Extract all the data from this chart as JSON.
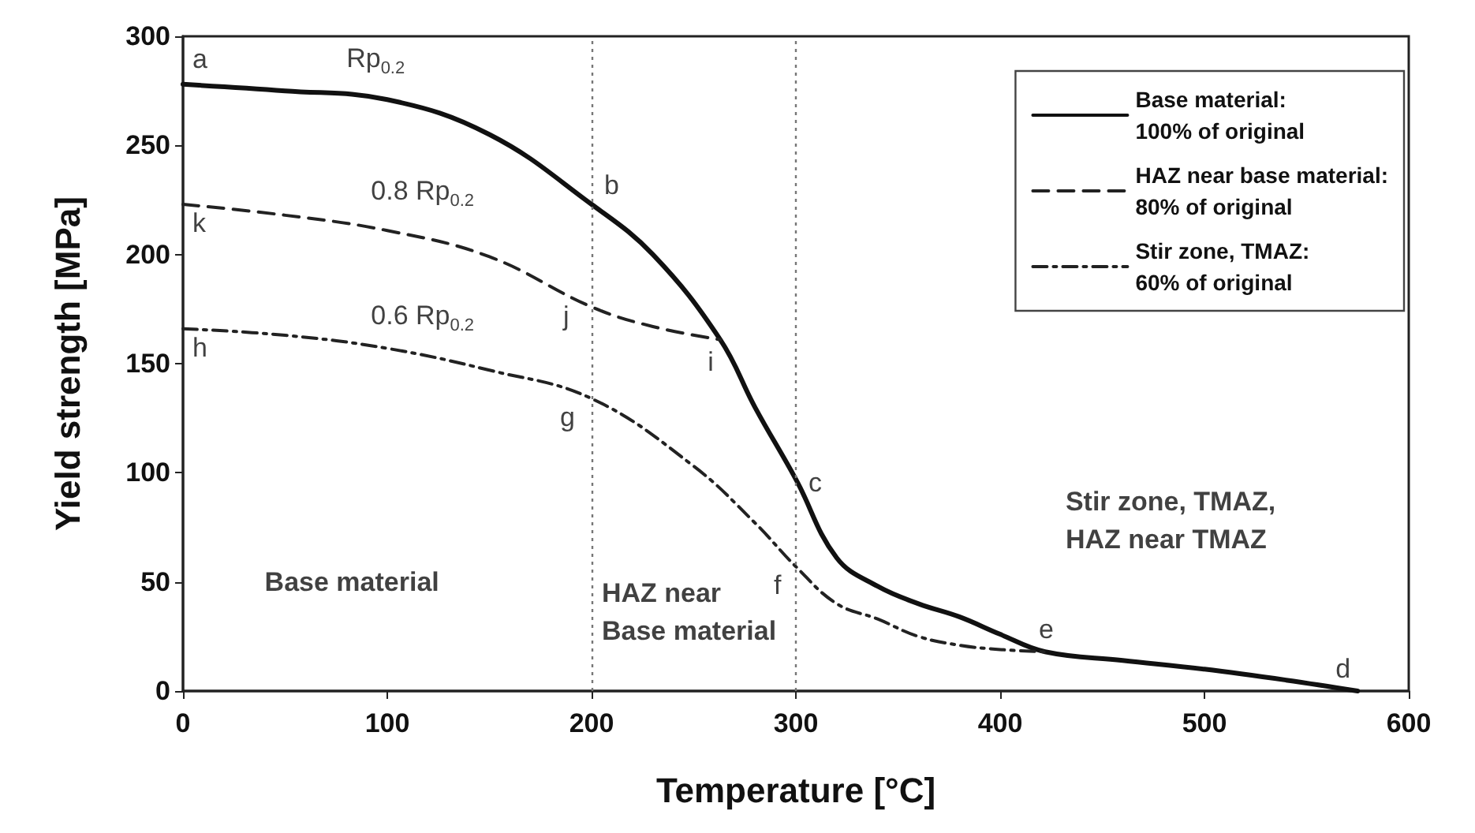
{
  "chart_data": {
    "type": "line",
    "xlabel": "Temperature [°C]",
    "ylabel": "Yield strength [MPa]",
    "xlim": [
      0,
      600
    ],
    "xticks": [
      0,
      100,
      200,
      300,
      400,
      500,
      600
    ],
    "ylim": [
      0,
      300
    ],
    "yticks": [
      0,
      50,
      100,
      150,
      200,
      250,
      300
    ],
    "legend": "top right",
    "marker": "none",
    "series": [
      {
        "name": "Base material:\n100% of original",
        "color": "#111111",
        "line_style": "solid",
        "x": [
          0,
          50,
          100,
          150,
          200,
          230,
          263,
          280,
          300,
          320,
          340,
          360,
          380,
          400,
          422,
          460,
          500,
          540,
          575
        ],
        "values": [
          278,
          275,
          271,
          255,
          223,
          200,
          161,
          130,
          97,
          61,
          48,
          40,
          34,
          26,
          18,
          14,
          10,
          5,
          0
        ]
      },
      {
        "name": "HAZ near base material:\n80% of original",
        "color": "#222222",
        "line_style": "dashed",
        "x": [
          0,
          50,
          100,
          150,
          200,
          230,
          263
        ],
        "values": [
          223,
          218,
          211,
          199,
          176,
          167,
          161
        ]
      },
      {
        "name": "Stir zone, TMAZ:\n60% of original",
        "color": "#222222",
        "line_style": "dashdot",
        "x": [
          0,
          50,
          100,
          150,
          200,
          250,
          280,
          300,
          320,
          340,
          360,
          380,
          400,
          422
        ],
        "values": [
          166,
          163,
          157,
          147,
          134,
          103,
          77,
          57,
          40,
          33,
          25,
          21,
          19,
          18
        ]
      }
    ],
    "ref_lines": [
      {
        "axis": "x",
        "value": 200,
        "color": "#777777",
        "line_style": "dotted"
      },
      {
        "axis": "x",
        "value": 300,
        "color": "#777777",
        "line_style": "dotted"
      }
    ],
    "annotations": [
      {
        "text": "a",
        "x": 0,
        "y": 278
      },
      {
        "text": "b",
        "x": 200,
        "y": 223
      },
      {
        "text": "c",
        "x": 300,
        "y": 97
      },
      {
        "text": "d",
        "x": 575,
        "y": 0
      },
      {
        "text": "e",
        "x": 422,
        "y": 18
      },
      {
        "text": "f",
        "x": 300,
        "y": 57
      },
      {
        "text": "g",
        "x": 200,
        "y": 134
      },
      {
        "text": "h",
        "x": 0,
        "y": 166
      },
      {
        "text": "i",
        "x": 263,
        "y": 161
      },
      {
        "text": "j",
        "x": 200,
        "y": 176
      },
      {
        "text": "k",
        "x": 0,
        "y": 223
      },
      "Rp$_{0.2}$",
      "0.8 Rp$_{0.2}$",
      "0.6 Rp$_{0.2}$",
      "Base material",
      "HAZ near\nBase material",
      "Stir zone, TMAZ,\nHAZ near TMAZ"
    ]
  }
}
